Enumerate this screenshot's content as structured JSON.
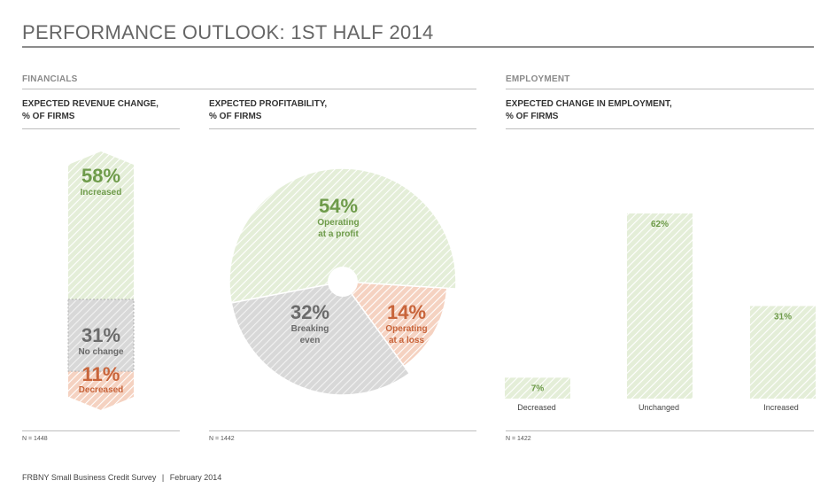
{
  "title": "PERFORMANCE OUTLOOK: 1ST HALF 2014",
  "sections": {
    "financials": "FINANCIALS",
    "employment": "EMPLOYMENT"
  },
  "footer": {
    "source": "FRBNY Small Business Credit Survey",
    "separator": "|",
    "date": "February 2014"
  },
  "colors": {
    "green": "#6e9b4a",
    "green_fill": "#dbe8cc",
    "gray": "#6b6b6b",
    "gray_fill": "#d4d4d4",
    "orange": "#c8643a",
    "orange_fill": "#f2c9b5"
  },
  "chart_data": [
    {
      "type": "bar",
      "title_line1": "EXPECTED REVENUE CHANGE,",
      "title_line2": "% OF FIRMS",
      "stacked": true,
      "n": "N = 1448",
      "segments": [
        {
          "pct": "58%",
          "label": "Increased",
          "value": 58,
          "color": "green"
        },
        {
          "pct": "31%",
          "label": "No change",
          "value": 31,
          "color": "gray"
        },
        {
          "pct": "11%",
          "label": "Decreased",
          "value": 11,
          "color": "orange"
        }
      ]
    },
    {
      "type": "pie",
      "title_line1": "EXPECTED PROFITABILITY,",
      "title_line2": "% OF FIRMS",
      "n": "N = 1442",
      "slices": [
        {
          "pct": "54%",
          "label1": "Operating",
          "label2": "at a profit",
          "value": 54,
          "color": "green"
        },
        {
          "pct": "14%",
          "label1": "Operating",
          "label2": "at a loss",
          "value": 14,
          "color": "orange"
        },
        {
          "pct": "32%",
          "label1": "Breaking",
          "label2": "even",
          "value": 32,
          "color": "gray"
        }
      ]
    },
    {
      "type": "bar",
      "title_line1": "EXPECTED CHANGE IN EMPLOYMENT,",
      "title_line2": "% OF FIRMS",
      "n": "N = 1422",
      "categories": [
        "Decreased",
        "Unchanged",
        "Increased"
      ],
      "values": [
        7,
        62,
        31
      ],
      "value_labels": [
        "7%",
        "62%",
        "31%"
      ],
      "ylim": [
        0,
        62
      ]
    }
  ]
}
